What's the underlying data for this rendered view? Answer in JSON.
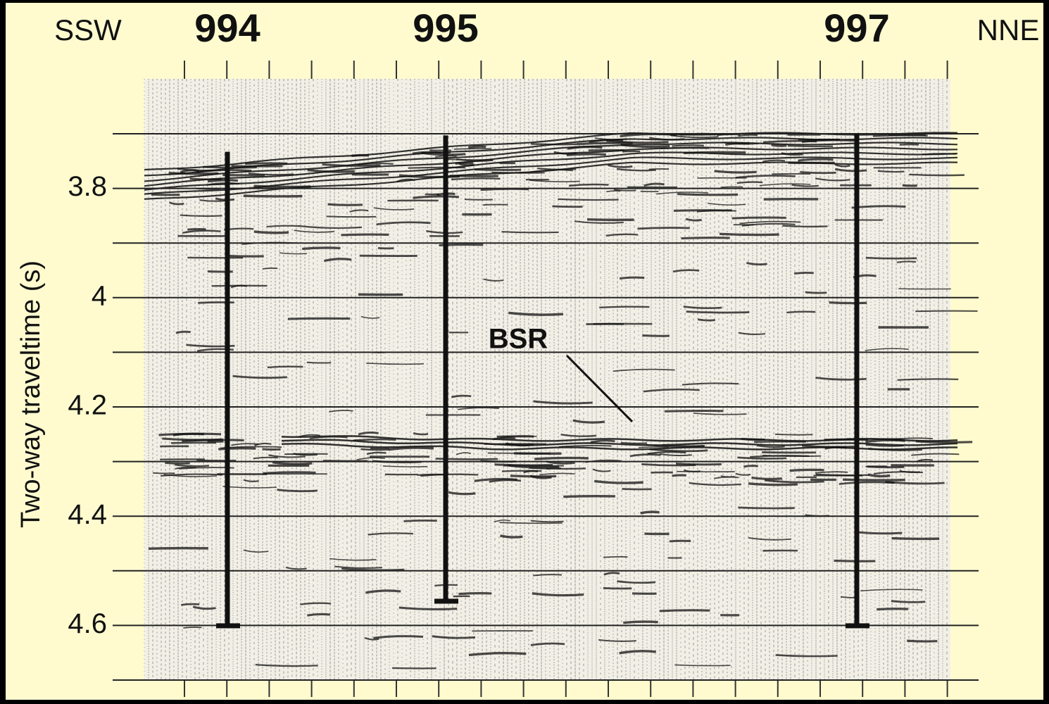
{
  "chart_data": {
    "type": "seismic",
    "left_label": "SSW",
    "right_label": "NNE",
    "ylabel": "Two-way traveltime (s)",
    "ylim": [
      3.7,
      4.7
    ],
    "yticks": [
      3.8,
      4.0,
      4.2,
      4.4,
      4.6
    ],
    "minor_yticks": [
      3.7,
      3.9,
      4.1,
      4.3,
      4.5,
      4.7
    ],
    "grid": true,
    "categories": [
      "994",
      "995",
      "997"
    ],
    "well_tops": [
      3.733,
      3.703,
      3.7
    ],
    "values": [
      4.6,
      4.555,
      4.6
    ],
    "annotation": "BSR",
    "annotation_target": 4.245,
    "well_color": "#111111"
  }
}
